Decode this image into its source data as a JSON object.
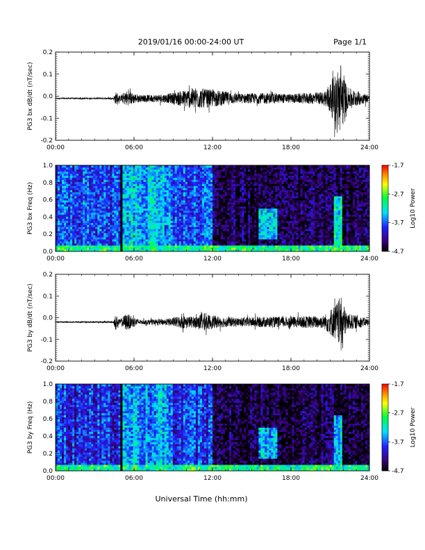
{
  "header": {
    "title": "2019/01/16  00:00-24:00 UT",
    "page_label": "Page 1/1"
  },
  "footer": {
    "xlabel": "Universal Time (hh:mm)"
  },
  "chart_data": [
    {
      "type": "line",
      "ylabel": "PG3 bx dB/dt (nT/sec)",
      "xlim": [
        0,
        24
      ],
      "ylim": [
        -0.2,
        0.2
      ],
      "x_ticks": [
        "00:00",
        "06:00",
        "12:00",
        "18:00",
        "24:00"
      ],
      "y_ticks": [
        "-0.2",
        "-0.1",
        "0.0",
        "0.1",
        "0.2"
      ],
      "baseline": -0.01,
      "amplitude_envelope": [
        {
          "t": 0,
          "a": 0.003
        },
        {
          "t": 4.4,
          "a": 0.004
        },
        {
          "t": 4.6,
          "a": 0.03
        },
        {
          "t": 4.9,
          "a": 0.012
        },
        {
          "t": 5.4,
          "a": 0.035
        },
        {
          "t": 6.5,
          "a": 0.015
        },
        {
          "t": 8.5,
          "a": 0.02
        },
        {
          "t": 9.6,
          "a": 0.035
        },
        {
          "t": 10.6,
          "a": 0.05
        },
        {
          "t": 11.2,
          "a": 0.045
        },
        {
          "t": 12.6,
          "a": 0.035
        },
        {
          "t": 14,
          "a": 0.022
        },
        {
          "t": 16,
          "a": 0.025
        },
        {
          "t": 18,
          "a": 0.02
        },
        {
          "t": 20.5,
          "a": 0.03
        },
        {
          "t": 21.5,
          "a": 0.12
        },
        {
          "t": 21.8,
          "a": 0.17
        },
        {
          "t": 22.3,
          "a": 0.05
        },
        {
          "t": 24,
          "a": 0.015
        }
      ]
    },
    {
      "type": "heatmap",
      "ylabel": "PG3 bx Freq (Hz)",
      "xlim": [
        0,
        24
      ],
      "ylim": [
        0,
        1.0
      ],
      "x_ticks": [
        "00:00",
        "06:00",
        "12:00",
        "18:00",
        "24:00"
      ],
      "y_ticks": [
        "0.0",
        "0.2",
        "0.4",
        "0.6",
        "0.8",
        "1.0"
      ],
      "colorbar": {
        "label": "Log10 Power",
        "range": [
          -4.7,
          -1.7
        ],
        "ticks": [
          "-1.7",
          "-2.7",
          "-3.7",
          "-4.7"
        ]
      },
      "features": [
        {
          "t": [
            0,
            12
          ],
          "f": [
            0,
            1.0
          ],
          "level": -3.8,
          "note": "broadband background"
        },
        {
          "t": [
            5.0,
            9.0
          ],
          "f": [
            0,
            1.0
          ],
          "level": -3.4,
          "note": "enhanced band"
        },
        {
          "t": [
            12,
            24
          ],
          "f": [
            0,
            1.0
          ],
          "level": -4.5,
          "note": "quiet"
        },
        {
          "t": [
            15.6,
            17.0
          ],
          "f": [
            0.15,
            0.5
          ],
          "level": -3.4,
          "note": "patch"
        },
        {
          "t": [
            21.3,
            21.9
          ],
          "f": [
            0,
            0.65
          ],
          "level": -3.2,
          "note": "burst"
        },
        {
          "t": [
            0,
            24
          ],
          "f": [
            0,
            0.06
          ],
          "level": -3.0,
          "note": "low-frequency band"
        }
      ],
      "data_gap": [
        4.95,
        5.05
      ]
    },
    {
      "type": "line",
      "ylabel": "PG3 by dB/dt (nT/sec)",
      "xlim": [
        0,
        24
      ],
      "ylim": [
        -0.2,
        0.2
      ],
      "x_ticks": [
        "00:00",
        "06:00",
        "12:00",
        "18:00",
        "24:00"
      ],
      "y_ticks": [
        "-0.2",
        "-0.1",
        "0.0",
        "0.1",
        "0.2"
      ],
      "baseline": -0.02,
      "amplitude_envelope": [
        {
          "t": 0,
          "a": 0.003
        },
        {
          "t": 4.4,
          "a": 0.004
        },
        {
          "t": 4.6,
          "a": 0.035
        },
        {
          "t": 4.9,
          "a": 0.012
        },
        {
          "t": 5.4,
          "a": 0.04
        },
        {
          "t": 6.5,
          "a": 0.01
        },
        {
          "t": 8.5,
          "a": 0.015
        },
        {
          "t": 9.6,
          "a": 0.03
        },
        {
          "t": 10.6,
          "a": 0.025
        },
        {
          "t": 11.2,
          "a": 0.04
        },
        {
          "t": 12.6,
          "a": 0.025
        },
        {
          "t": 14,
          "a": 0.02
        },
        {
          "t": 16,
          "a": 0.025
        },
        {
          "t": 18,
          "a": 0.025
        },
        {
          "t": 20.5,
          "a": 0.03
        },
        {
          "t": 21.5,
          "a": 0.09
        },
        {
          "t": 21.8,
          "a": 0.12
        },
        {
          "t": 22.3,
          "a": 0.04
        },
        {
          "t": 24,
          "a": 0.015
        }
      ]
    },
    {
      "type": "heatmap",
      "ylabel": "PG3 by Freq (Hz)",
      "xlim": [
        0,
        24
      ],
      "ylim": [
        0,
        1.0
      ],
      "x_ticks": [
        "00:00",
        "06:00",
        "12:00",
        "18:00",
        "24:00"
      ],
      "y_ticks": [
        "0.0",
        "0.2",
        "0.4",
        "0.6",
        "0.8",
        "1.0"
      ],
      "colorbar": {
        "label": "Log10 Power",
        "range": [
          -4.7,
          -1.7
        ],
        "ticks": [
          "-1.7",
          "-2.7",
          "-3.7",
          "-4.7"
        ]
      },
      "features": [
        {
          "t": [
            0,
            12
          ],
          "f": [
            0,
            1.0
          ],
          "level": -3.9,
          "note": "broadband background"
        },
        {
          "t": [
            5.0,
            9.0
          ],
          "f": [
            0,
            1.0
          ],
          "level": -3.5,
          "note": "enhanced band"
        },
        {
          "t": [
            12,
            24
          ],
          "f": [
            0,
            1.0
          ],
          "level": -4.5,
          "note": "quiet"
        },
        {
          "t": [
            15.6,
            17.0
          ],
          "f": [
            0.15,
            0.5
          ],
          "level": -3.4,
          "note": "patch"
        },
        {
          "t": [
            21.3,
            21.9
          ],
          "f": [
            0,
            0.65
          ],
          "level": -3.3,
          "note": "burst"
        },
        {
          "t": [
            0,
            24
          ],
          "f": [
            0,
            0.08
          ],
          "level": -3.0,
          "note": "low-frequency band"
        }
      ],
      "data_gap": [
        4.95,
        5.05
      ]
    }
  ]
}
